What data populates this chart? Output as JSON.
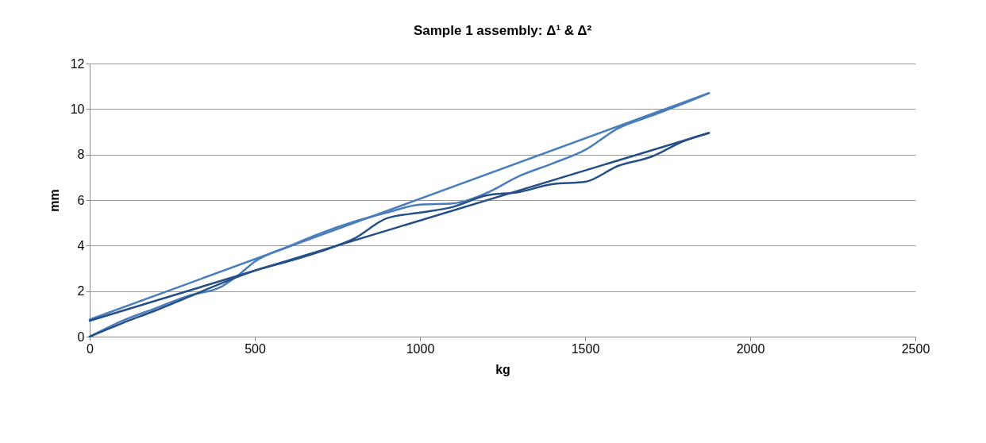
{
  "chart_data": {
    "type": "line",
    "title": "Sample 1 assembly: Δ¹ & Δ²",
    "xlabel": "kg",
    "ylabel": "mm",
    "xlim": [
      0,
      2500
    ],
    "xticks": [
      0,
      500,
      1000,
      1500,
      2000,
      2500
    ],
    "ylim": [
      0,
      12
    ],
    "yticks": [
      0,
      2,
      4,
      6,
      8,
      10,
      12
    ],
    "grid": "y",
    "marker": "none",
    "line_style": "solid",
    "series": [
      {
        "color": "#4a7ebb",
        "x": [
          0,
          100,
          200,
          300,
          400,
          450,
          500,
          600,
          700,
          800,
          900,
          1000,
          1100,
          1200,
          1300,
          1400,
          1500,
          1600,
          1700,
          1800,
          1875
        ],
        "values": [
          0,
          0.7,
          1.25,
          1.8,
          2.2,
          2.7,
          3.3,
          3.95,
          4.55,
          5.05,
          5.45,
          5.8,
          5.85,
          6.3,
          7.05,
          7.6,
          8.2,
          9.15,
          9.7,
          10.25,
          10.7
        ]
      },
      {
        "color": "#254f87",
        "x": [
          0,
          100,
          200,
          300,
          400,
          500,
          600,
          700,
          800,
          900,
          1000,
          1100,
          1200,
          1300,
          1400,
          1500,
          1600,
          1700,
          1800,
          1875
        ],
        "values": [
          0,
          0.6,
          1.15,
          1.75,
          2.35,
          2.9,
          3.3,
          3.75,
          4.3,
          5.2,
          5.45,
          5.7,
          6.2,
          6.35,
          6.7,
          6.8,
          7.5,
          7.9,
          8.6,
          8.95
        ]
      },
      {
        "color": "#4a7ebb",
        "x": [
          0,
          1875
        ],
        "values": [
          0.75,
          10.7
        ]
      },
      {
        "color": "#254f87",
        "x": [
          0,
          1875
        ],
        "values": [
          0.7,
          8.95
        ]
      }
    ]
  }
}
